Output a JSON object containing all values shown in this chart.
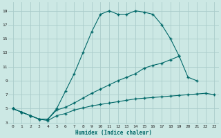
{
  "xlabel": "Humidex (Indice chaleur)",
  "xlim": [
    -0.5,
    23.5
  ],
  "ylim": [
    2.8,
    20.2
  ],
  "xticks": [
    0,
    1,
    2,
    3,
    4,
    5,
    6,
    7,
    8,
    9,
    10,
    11,
    12,
    13,
    14,
    15,
    16,
    17,
    18,
    19,
    20,
    21,
    22,
    23
  ],
  "yticks": [
    3,
    5,
    7,
    9,
    11,
    13,
    15,
    17,
    19
  ],
  "bg_color": "#cce8e4",
  "grid_color": "#aaccca",
  "line_color": "#006868",
  "curve1_x": [
    0,
    1,
    2,
    3,
    4,
    5,
    6,
    7,
    8,
    9,
    10,
    11,
    12,
    13,
    14,
    15,
    16,
    17,
    18,
    19
  ],
  "curve1_y": [
    5,
    4.5,
    4.0,
    3.5,
    3.5,
    5.0,
    7.5,
    10.0,
    13.0,
    16.0,
    18.5,
    19.0,
    18.5,
    18.5,
    19.0,
    18.8,
    18.5,
    17.0,
    15.0,
    12.5
  ],
  "curve2_x": [
    0,
    1,
    2,
    3,
    4,
    5,
    6,
    7,
    8,
    9,
    10,
    11,
    12,
    13,
    14,
    15,
    16,
    17,
    18,
    19,
    20,
    21
  ],
  "curve2_y": [
    5,
    4.5,
    4.0,
    3.5,
    3.5,
    4.8,
    5.2,
    5.8,
    6.5,
    7.2,
    7.8,
    8.4,
    9.0,
    9.5,
    10.0,
    10.8,
    11.2,
    11.5,
    12.0,
    12.5,
    9.5,
    9.0
  ],
  "curve3_x": [
    0,
    1,
    2,
    3,
    4,
    5,
    6,
    7,
    8,
    9,
    10,
    11,
    12,
    13,
    14,
    15,
    16,
    17,
    18,
    19,
    20,
    21,
    22,
    23
  ],
  "curve3_y": [
    5,
    4.5,
    4.0,
    3.5,
    3.3,
    4.0,
    4.3,
    4.8,
    5.1,
    5.4,
    5.6,
    5.8,
    6.0,
    6.2,
    6.4,
    6.5,
    6.6,
    6.7,
    6.8,
    6.9,
    7.0,
    7.1,
    7.2,
    7.0
  ]
}
